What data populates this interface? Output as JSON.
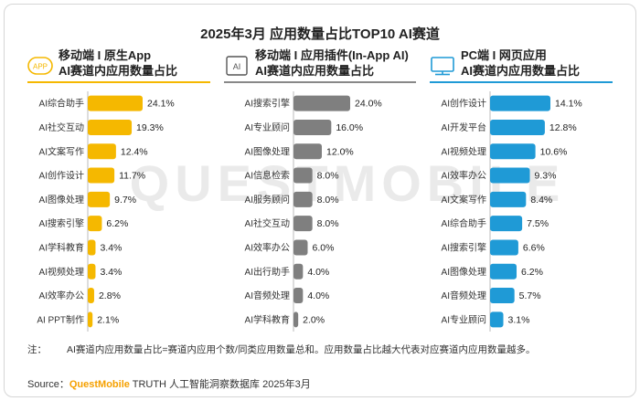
{
  "title": "2025年3月 应用数量占比TOP10 AI赛道",
  "watermark": "QUESTMOBILE",
  "colors": {
    "panel1": "#f5b800",
    "panel2": "#7f7f7f",
    "panel3": "#1f9ad6",
    "panel1_underline": "#f5b800",
    "panel2_underline": "#888888",
    "panel3_underline": "#1f9ad6"
  },
  "panels": [
    {
      "icon": "app-icon",
      "icon_text": "APP",
      "title_line1": "移动端 I 原生App",
      "title_line2": "AI赛道内应用数量占比"
    },
    {
      "icon": "ai-plugin-icon",
      "icon_text": "AI",
      "title_line1": "移动端 I 应用插件(In-App AI)",
      "title_line2": "AI赛道内应用数量占比"
    },
    {
      "icon": "monitor-icon",
      "icon_text": "",
      "title_line1": "PC端 I 网页应用",
      "title_line2": "AI赛道内应用数量占比"
    }
  ],
  "chart_data": [
    {
      "type": "bar",
      "orientation": "horizontal",
      "categories": [
        "AI综合助手",
        "AI社交互动",
        "AI文案写作",
        "AI创作设计",
        "AI图像处理",
        "AI搜索引擎",
        "AI学科教育",
        "AI视频处理",
        "AI效率办公",
        "AI PPT制作"
      ],
      "values": [
        24.1,
        19.3,
        12.4,
        11.7,
        9.7,
        6.2,
        3.4,
        3.4,
        2.8,
        2.1
      ],
      "unit": "%"
    },
    {
      "type": "bar",
      "orientation": "horizontal",
      "categories": [
        "AI搜索引擎",
        "AI专业顾问",
        "AI图像处理",
        "AI信息检索",
        "AI服务顾问",
        "AI社交互动",
        "AI效率办公",
        "AI出行助手",
        "AI音频处理",
        "AI学科教育"
      ],
      "values": [
        24.0,
        16.0,
        12.0,
        8.0,
        8.0,
        8.0,
        6.0,
        4.0,
        4.0,
        2.0
      ],
      "unit": "%"
    },
    {
      "type": "bar",
      "orientation": "horizontal",
      "categories": [
        "AI创作设计",
        "AI开发平台",
        "AI视频处理",
        "AI效率办公",
        "AI文案写作",
        "AI综合助手",
        "AI搜索引擎",
        "AI图像处理",
        "AI音频处理",
        "AI专业顾问"
      ],
      "values": [
        14.1,
        12.8,
        10.6,
        9.3,
        8.4,
        7.5,
        6.6,
        6.2,
        5.7,
        3.1
      ],
      "unit": "%"
    }
  ],
  "note": {
    "label": "注：",
    "text": "AI赛道内应用数量占比=赛道内应用个数/同类应用数量总和。应用数量占比越大代表对应赛道内应用数量越多。"
  },
  "source": {
    "label": "Source：",
    "brand": "QuestMobile",
    "text": " TRUTH 人工智能洞察数据库 2025年3月"
  }
}
